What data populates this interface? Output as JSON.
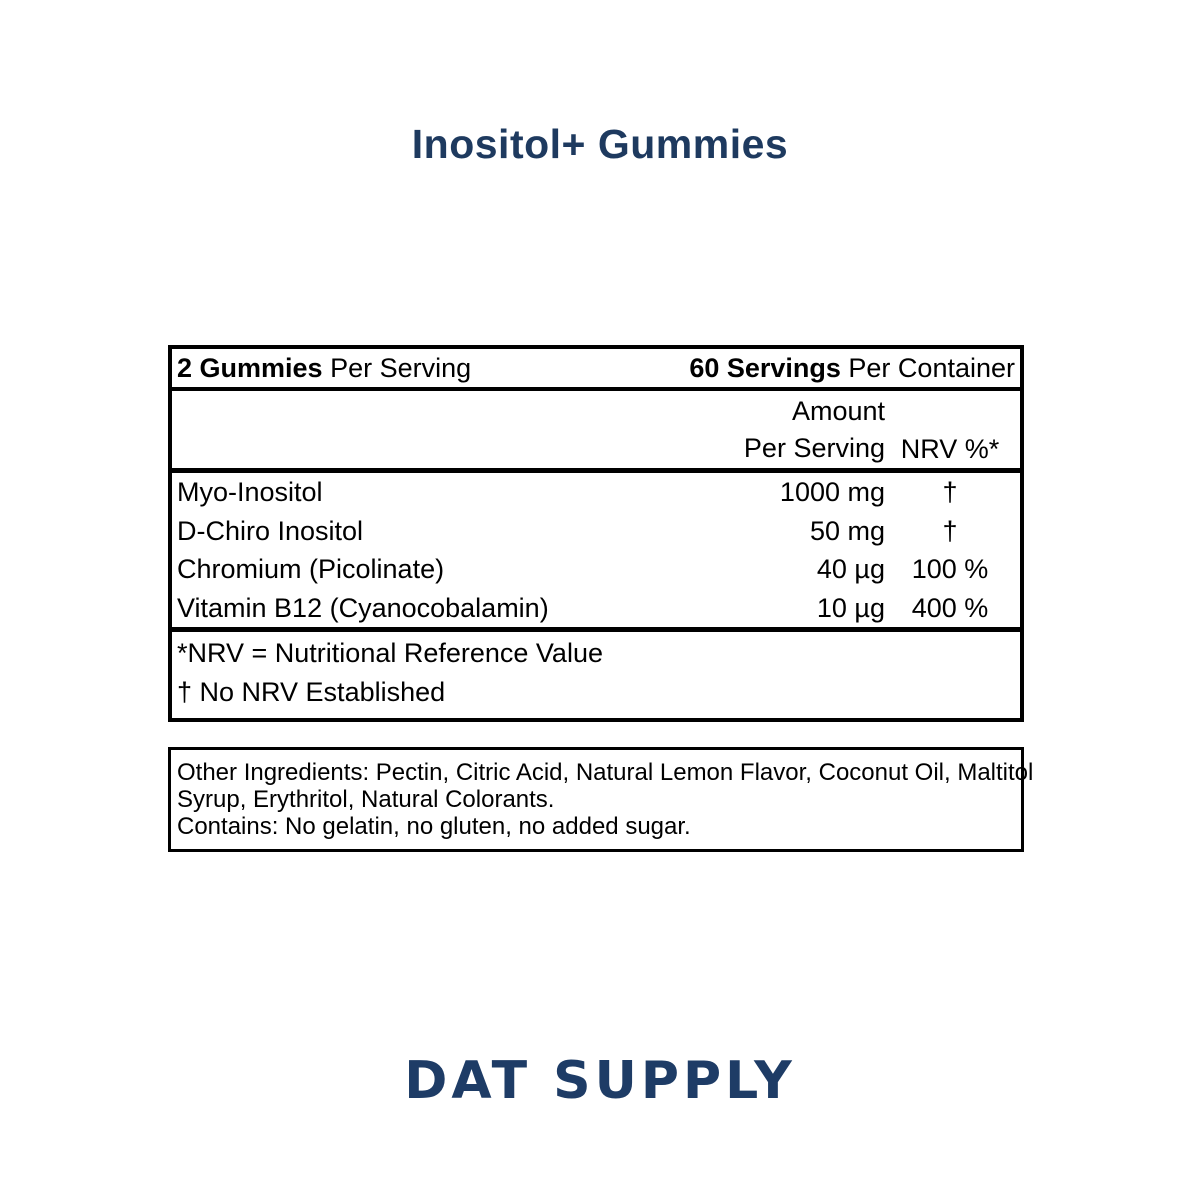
{
  "page": {
    "title": "Inositol+ Gummies",
    "brand": "DAT SUPPLY"
  },
  "colors": {
    "title_navy": "#1e3a5f",
    "brand_navy": "#1e3c66",
    "label_ink": "#000000",
    "background": "#ffffff"
  },
  "supplement_facts": {
    "serving_left_bold": "2 Gummies",
    "serving_left_rest": " Per Serving",
    "serving_right_bold": "60 Servings",
    "serving_right_rest": " Per Container",
    "header": {
      "amount_line1": "Amount",
      "amount_line2": "Per Serving",
      "nrv_label": "NRV %*"
    },
    "rows": [
      {
        "name": "Myo-Inositol",
        "amount": "1000 mg",
        "nrv": "†"
      },
      {
        "name": "D-Chiro Inositol",
        "amount": "50 mg",
        "nrv": "†"
      },
      {
        "name": "Chromium (Picolinate)",
        "amount": "40 µg",
        "nrv": "100 %"
      },
      {
        "name": "Vitamin B12 (Cyanocobalamin)",
        "amount": "10 µg",
        "nrv": "400 %"
      }
    ],
    "footnotes": [
      "*NRV = Nutritional Reference Value",
      "† No NRV Established"
    ]
  },
  "other_ingredients": {
    "lines": [
      "Other Ingredients: Pectin, Citric Acid, Natural Lemon Flavor, Coconut Oil, Maltitol",
      "Syrup, Erythritol, Natural Colorants.",
      "Contains: No gelatin, no gluten, no added sugar."
    ]
  }
}
